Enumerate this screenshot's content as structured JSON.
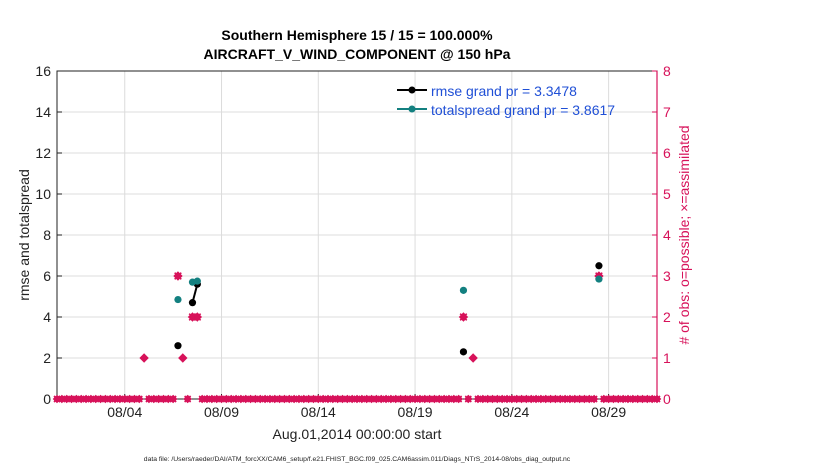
{
  "chart_data": {
    "type": "scatter",
    "title_line1": "Southern Hemisphere 15 / 15 = 100.000%",
    "title_line2": "AIRCRAFT_V_WIND_COMPONENT @ 150 hPa",
    "xlabel": "Aug.01,2014 00:00:00 start",
    "ylabel_left": "rmse and totalspread",
    "ylabel_right": "# of obs: o=possible; ×=assimilated",
    "footer": "data file: /Users/raeder/DAI/ATM_forcXX/CAM6_setup/f.e21.FHIST_BGC.f09_025.CAM6assim.011/Diags_NTrS_2014-08/obs_diag_output.nc",
    "xlim": [
      0,
      31
    ],
    "ylim_left": [
      0,
      16
    ],
    "ylim_right": [
      0,
      8
    ],
    "x_ticks": [
      3.5,
      8.5,
      13.5,
      18.5,
      23.5,
      28.5
    ],
    "x_tick_labels": [
      "08/04",
      "08/09",
      "08/14",
      "08/19",
      "08/24",
      "08/29"
    ],
    "y_ticks_left": [
      0,
      2,
      4,
      6,
      8,
      10,
      12,
      14,
      16
    ],
    "y_ticks_right": [
      0,
      1,
      2,
      3,
      4,
      5,
      6,
      7,
      8
    ],
    "grid": true,
    "legend_position": "top-right",
    "colors": {
      "rmse": "#000000",
      "totalspread": "#138080",
      "obs": "#d7125a",
      "grid": "#dcdcdc",
      "axis": "#222222"
    },
    "series": [
      {
        "name": "rmse",
        "legend": "rmse grand pr = 3.3478",
        "axis": "left",
        "points": [
          [
            6.25,
            2.6
          ],
          [
            7.0,
            4.7
          ],
          [
            7.25,
            5.6
          ],
          [
            21.0,
            2.3
          ],
          [
            28.0,
            6.5
          ]
        ],
        "segments": [
          [
            [
              7.0,
              4.7
            ],
            [
              7.25,
              5.6
            ]
          ]
        ]
      },
      {
        "name": "totalspread",
        "legend": "totalspread grand pr = 3.8617",
        "axis": "left",
        "points": [
          [
            6.25,
            4.85
          ],
          [
            7.0,
            5.7
          ],
          [
            7.25,
            5.75
          ],
          [
            21.0,
            5.3
          ],
          [
            28.0,
            5.85
          ]
        ],
        "segments": [
          [
            [
              7.0,
              5.7
            ],
            [
              7.25,
              5.75
            ]
          ]
        ]
      },
      {
        "name": "obs_possible",
        "axis": "right",
        "points": [
          [
            4.5,
            1
          ],
          [
            6.25,
            3
          ],
          [
            6.5,
            1
          ],
          [
            7.0,
            2
          ],
          [
            7.25,
            2
          ],
          [
            21.0,
            2
          ],
          [
            21.5,
            1
          ],
          [
            28.0,
            3
          ]
        ]
      },
      {
        "name": "obs_assimilated",
        "axis": "right",
        "points": [
          [
            6.25,
            3
          ],
          [
            7.0,
            2
          ],
          [
            7.25,
            2
          ],
          [
            21.0,
            2
          ],
          [
            28.0,
            3
          ]
        ]
      },
      {
        "name": "obs_zero",
        "axis": "right",
        "x_start": 0,
        "x_end": 31,
        "x_step": 0.25,
        "value": 0,
        "exclude_x": [
          4.5,
          6.25,
          6.5,
          7.0,
          7.25,
          21.0,
          21.5,
          28.0
        ]
      }
    ]
  }
}
